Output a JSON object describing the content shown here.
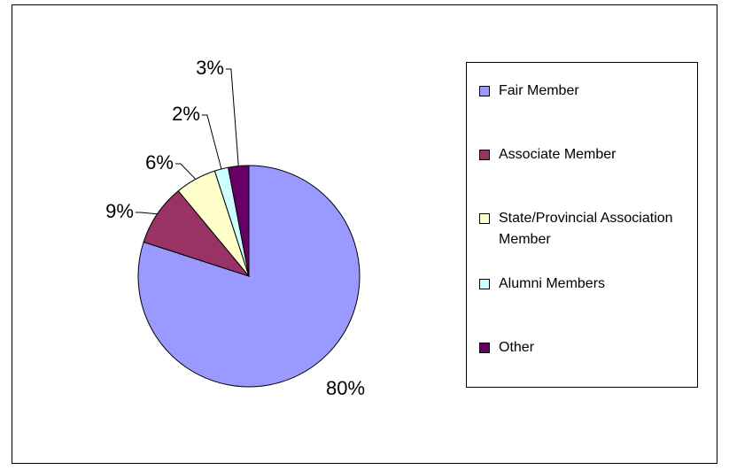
{
  "chart_data": {
    "type": "pie",
    "categories": [
      "Fair Member",
      "Associate Member",
      "State/Provincial Association Member",
      "Alumni Members",
      "Other"
    ],
    "values": [
      80,
      9,
      6,
      2,
      3
    ],
    "value_labels": [
      "80%",
      "9%",
      "6%",
      "2%",
      "3%"
    ],
    "colors": [
      "#9999ff",
      "#993366",
      "#ffffcc",
      "#ccffff",
      "#660066"
    ],
    "legend": "right"
  }
}
